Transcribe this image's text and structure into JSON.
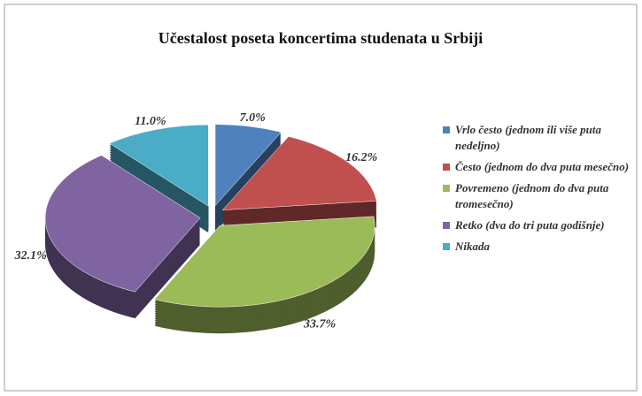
{
  "chart_data": {
    "type": "pie",
    "title": "Učestalost poseta koncertima studenata u Srbiji",
    "categories": [
      "Vrlo često (jednom ili više puta nedeljno)",
      "Često (jednom do dva puta mesečno)",
      "Povremeno (jednom do dva puta tromesečno)",
      "Retko (dva do tri puta godišnje)",
      "Nikada"
    ],
    "values": [
      7.0,
      16.2,
      33.7,
      32.1,
      11.0
    ],
    "value_labels": [
      "7.0%",
      "16.2%",
      "33.7%",
      "32.1%",
      "11.0%"
    ],
    "colors": [
      "#4f81bd",
      "#c0504d",
      "#9bbb59",
      "#8064a2",
      "#4bacc6"
    ],
    "legend": "right"
  }
}
